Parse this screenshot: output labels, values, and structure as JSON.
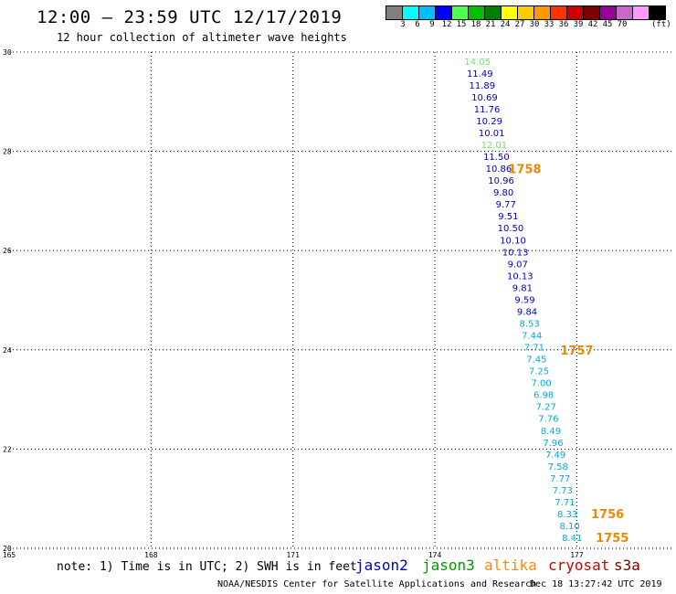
{
  "header": {
    "title": "12:00 – 23:59 UTC 12/17/2019",
    "subtitle": "12 hour collection of altimeter wave heights"
  },
  "colorbar": {
    "colors": [
      "#808080",
      "#00ffff",
      "#00bfff",
      "#0000ff",
      "#50ff50",
      "#00c000",
      "#008000",
      "#ffff00",
      "#ffcc00",
      "#ff9900",
      "#ff3300",
      "#cc0000",
      "#800000",
      "#990099",
      "#cc66cc",
      "#ff99ff",
      "#000000"
    ],
    "labels": [
      "3",
      "6",
      "9",
      "12",
      "15",
      "18",
      "21",
      "24",
      "27",
      "30",
      "33",
      "36",
      "39",
      "42",
      "45",
      "70"
    ],
    "unit": "(ft)"
  },
  "chart_data": {
    "type": "scatter",
    "title": "12:00 – 23:59 UTC 12/17/2019",
    "subtitle": "12 hour collection of altimeter wave heights",
    "xlim": [
      165,
      179
    ],
    "ylim": [
      20,
      30
    ],
    "x_ticks": [
      "165",
      "168",
      "171",
      "174",
      "177"
    ],
    "y_ticks": [
      "30",
      "28",
      "26",
      "24",
      "22",
      "20"
    ],
    "grid": true,
    "points": [
      {
        "x": 174.9,
        "y": 29.82,
        "label": "14.05",
        "color": "#66ee66"
      },
      {
        "x": 174.95,
        "y": 29.58,
        "label": "11.49",
        "color": "#0000c0"
      },
      {
        "x": 175.0,
        "y": 29.34,
        "label": "11.89",
        "color": "#0000c0"
      },
      {
        "x": 175.05,
        "y": 29.1,
        "label": "10.69",
        "color": "#0000c0"
      },
      {
        "x": 175.1,
        "y": 28.86,
        "label": "11.76",
        "color": "#0000c0"
      },
      {
        "x": 175.15,
        "y": 28.62,
        "label": "10.29",
        "color": "#0000c0"
      },
      {
        "x": 175.2,
        "y": 28.38,
        "label": "10.01",
        "color": "#0000c0"
      },
      {
        "x": 175.25,
        "y": 28.14,
        "label": "12.01",
        "color": "#66ee66"
      },
      {
        "x": 175.3,
        "y": 27.9,
        "label": "11.50",
        "color": "#0000c0"
      },
      {
        "x": 175.35,
        "y": 27.66,
        "label": "10.86",
        "color": "#0000c0"
      },
      {
        "x": 175.4,
        "y": 27.42,
        "label": "10.96",
        "color": "#0000c0"
      },
      {
        "x": 175.45,
        "y": 27.18,
        "label": "9.80",
        "color": "#0000c0"
      },
      {
        "x": 175.5,
        "y": 26.94,
        "label": "9.77",
        "color": "#0000c0"
      },
      {
        "x": 175.55,
        "y": 26.7,
        "label": "9.51",
        "color": "#0000c0"
      },
      {
        "x": 175.6,
        "y": 26.46,
        "label": "10.50",
        "color": "#0000c0"
      },
      {
        "x": 175.65,
        "y": 26.22,
        "label": "10.10",
        "color": "#0000c0"
      },
      {
        "x": 175.7,
        "y": 25.98,
        "label": "10.13",
        "color": "#0000c0"
      },
      {
        "x": 175.75,
        "y": 25.74,
        "label": "9.07",
        "color": "#0000c0"
      },
      {
        "x": 175.8,
        "y": 25.5,
        "label": "10.13",
        "color": "#0000c0"
      },
      {
        "x": 175.85,
        "y": 25.26,
        "label": "9.81",
        "color": "#0000c0"
      },
      {
        "x": 175.9,
        "y": 25.02,
        "label": "9.59",
        "color": "#0000c0"
      },
      {
        "x": 175.95,
        "y": 24.78,
        "label": "9.84",
        "color": "#0000c0"
      },
      {
        "x": 176.0,
        "y": 24.54,
        "label": "8.53",
        "color": "#00aadd"
      },
      {
        "x": 176.05,
        "y": 24.3,
        "label": "7.44",
        "color": "#00aadd"
      },
      {
        "x": 176.1,
        "y": 24.06,
        "label": "7.71",
        "color": "#00aadd"
      },
      {
        "x": 176.15,
        "y": 23.82,
        "label": "7.45",
        "color": "#00aadd"
      },
      {
        "x": 176.2,
        "y": 23.58,
        "label": "7.25",
        "color": "#00aadd"
      },
      {
        "x": 176.25,
        "y": 23.34,
        "label": "7.00",
        "color": "#00aadd"
      },
      {
        "x": 176.3,
        "y": 23.1,
        "label": "6.98",
        "color": "#00aadd"
      },
      {
        "x": 176.35,
        "y": 22.86,
        "label": "7.27",
        "color": "#00aadd"
      },
      {
        "x": 176.4,
        "y": 22.62,
        "label": "7.76",
        "color": "#00aadd"
      },
      {
        "x": 176.45,
        "y": 22.38,
        "label": "8.49",
        "color": "#00aadd"
      },
      {
        "x": 176.5,
        "y": 22.14,
        "label": "7.96",
        "color": "#00aadd"
      },
      {
        "x": 176.55,
        "y": 21.9,
        "label": "7.49",
        "color": "#00aadd"
      },
      {
        "x": 176.6,
        "y": 21.66,
        "label": "7.58",
        "color": "#00aadd"
      },
      {
        "x": 176.65,
        "y": 21.42,
        "label": "7.77",
        "color": "#00aadd"
      },
      {
        "x": 176.7,
        "y": 21.18,
        "label": "7.73",
        "color": "#00aadd"
      },
      {
        "x": 176.75,
        "y": 20.94,
        "label": "7.71",
        "color": "#00aadd"
      },
      {
        "x": 176.8,
        "y": 20.7,
        "label": "8.33",
        "color": "#00aadd"
      },
      {
        "x": 176.85,
        "y": 20.46,
        "label": "8.10",
        "color": "#00aadd"
      },
      {
        "x": 176.9,
        "y": 20.22,
        "label": "8.41",
        "color": "#00aadd"
      }
    ],
    "annotations": [
      {
        "x": 175.9,
        "y": 27.65,
        "text": "1758",
        "color": "#ee8800"
      },
      {
        "x": 177.0,
        "y": 24.0,
        "text": "1757",
        "color": "#ee8800"
      },
      {
        "x": 177.65,
        "y": 20.7,
        "text": "1756",
        "color": "#ee8800"
      },
      {
        "x": 177.75,
        "y": 20.22,
        "text": "1755",
        "color": "#ee8800"
      }
    ]
  },
  "footer": {
    "note": "note: 1) Time is in UTC; 2) SWH is in feet",
    "legend": [
      {
        "name": "jason2",
        "color": "#0000cc"
      },
      {
        "name": "jason3",
        "color": "#009900"
      },
      {
        "name": "altika",
        "color": "#ff8800"
      },
      {
        "name": "cryosat",
        "color": "#cc0000"
      },
      {
        "name": "s3a",
        "color": "#800000"
      }
    ],
    "credit": "NOAA/NESDIS Center for Satellite Applications and Research",
    "timestamp": "Dec 18 13:27:42 UTC 2019"
  }
}
